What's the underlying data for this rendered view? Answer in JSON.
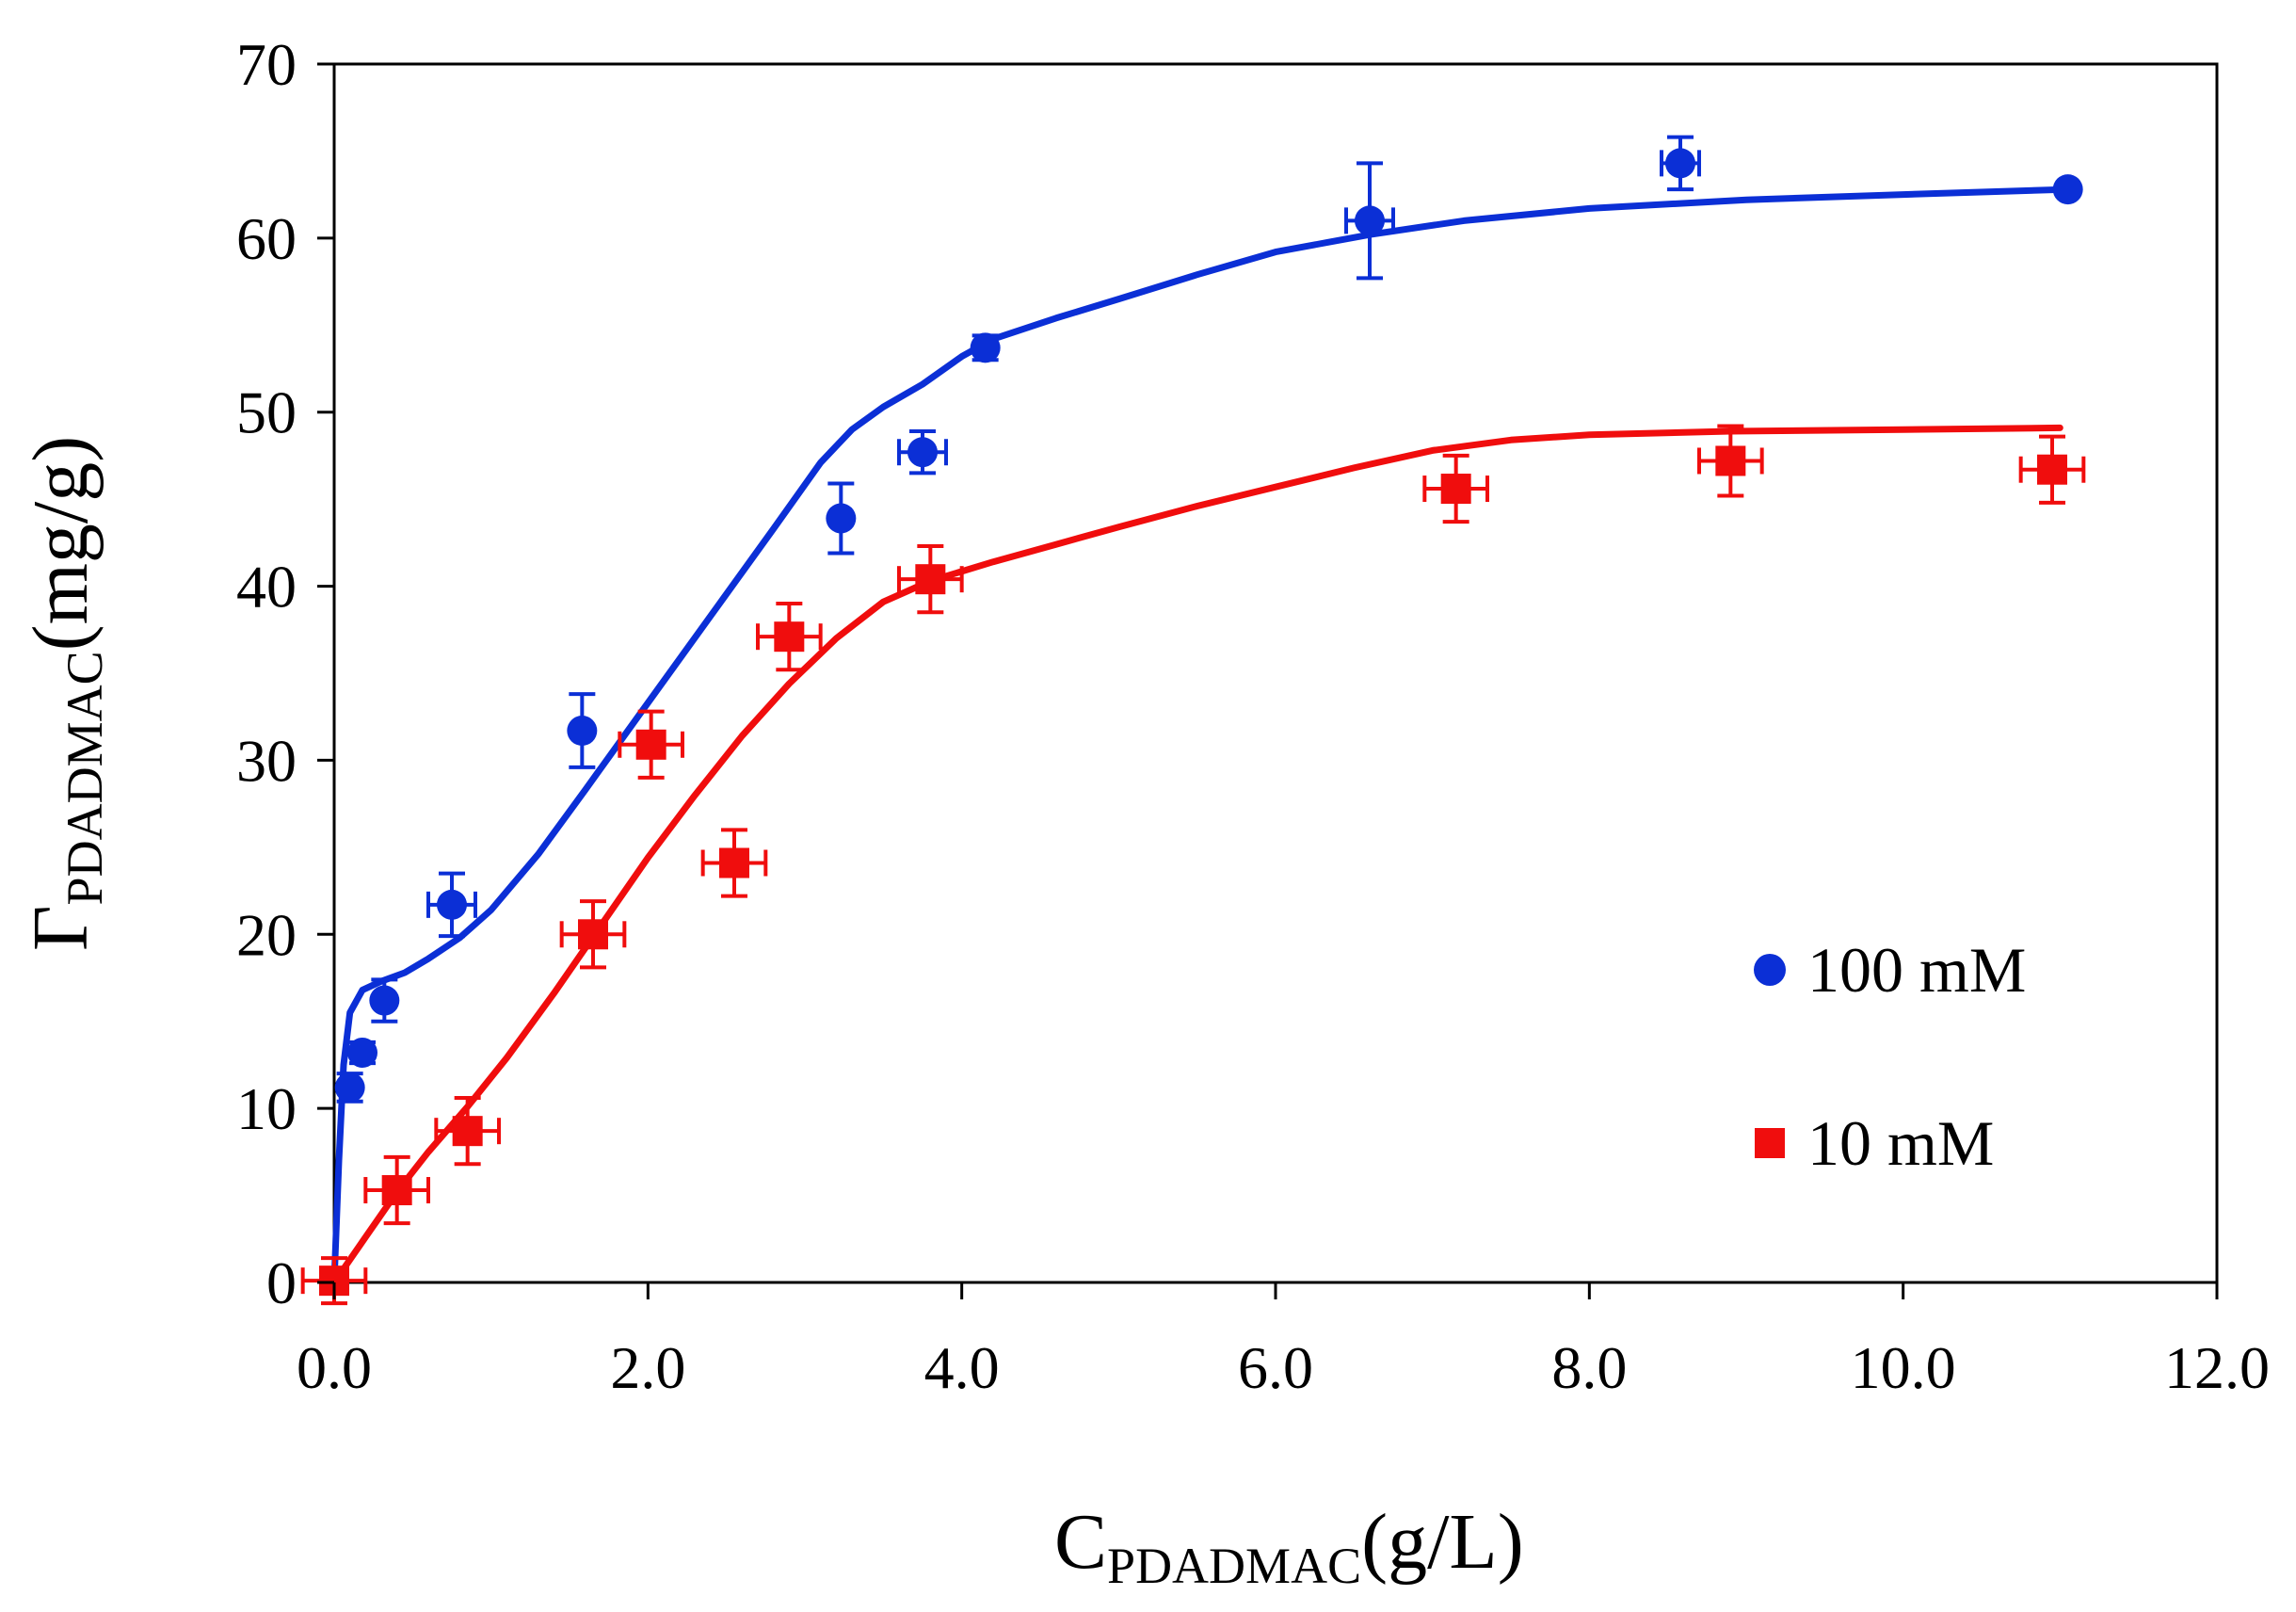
{
  "chart_data": {
    "type": "scatter",
    "xlabel": {
      "main": "C",
      "sub": "PDADMAC",
      "unit": "(g/L)"
    },
    "ylabel": {
      "main": "Γ",
      "sub": "PDADMAC",
      "unit": "(mg/g)"
    },
    "xlim": [
      0,
      12
    ],
    "ylim": [
      0,
      70
    ],
    "x_ticks": [
      0,
      2,
      4,
      6,
      8,
      10,
      12
    ],
    "x_tick_labels": [
      "0.0",
      "2.0",
      "4.0",
      "6.0",
      "8.0",
      "10.0",
      "12.0"
    ],
    "y_ticks": [
      0,
      10,
      20,
      30,
      40,
      50,
      60,
      70
    ],
    "y_tick_labels": [
      "0",
      "10",
      "20",
      "30",
      "40",
      "50",
      "60",
      "70"
    ],
    "grid": false,
    "legend_position": "lower-right",
    "series": [
      {
        "name": "100 mM",
        "marker": "circle",
        "color": "#0b2fd6",
        "points": [
          {
            "x": 0.1,
            "y": 11.2,
            "yerr": 0.8,
            "xerr": 0
          },
          {
            "x": 0.18,
            "y": 13.2,
            "yerr": 0.6,
            "xerr": 0
          },
          {
            "x": 0.32,
            "y": 16.2,
            "yerr": 1.2,
            "xerr": 0
          },
          {
            "x": 0.75,
            "y": 21.7,
            "yerr": 1.8,
            "xerr": 0.15
          },
          {
            "x": 1.58,
            "y": 31.7,
            "yerr": 2.1,
            "xerr": 0
          },
          {
            "x": 3.23,
            "y": 43.9,
            "yerr": 2.0,
            "xerr": 0
          },
          {
            "x": 3.75,
            "y": 47.7,
            "yerr": 1.2,
            "xerr": 0.15
          },
          {
            "x": 4.15,
            "y": 53.7,
            "yerr": 0.7,
            "xerr": 0
          },
          {
            "x": 6.6,
            "y": 61.0,
            "yerr": 3.3,
            "xerr": 0.15
          },
          {
            "x": 8.58,
            "y": 64.3,
            "yerr": 1.5,
            "xerr": 0.12
          },
          {
            "x": 11.05,
            "y": 62.8,
            "yerr": 0,
            "xerr": 0
          }
        ],
        "fit": [
          [
            0,
            0
          ],
          [
            0.03,
            7
          ],
          [
            0.06,
            12.5
          ],
          [
            0.1,
            15.5
          ],
          [
            0.18,
            16.8
          ],
          [
            0.3,
            17.3
          ],
          [
            0.45,
            17.8
          ],
          [
            0.6,
            18.6
          ],
          [
            0.8,
            19.8
          ],
          [
            1.0,
            21.4
          ],
          [
            1.3,
            24.6
          ],
          [
            1.6,
            28.3
          ],
          [
            2.0,
            33.3
          ],
          [
            2.4,
            38.3
          ],
          [
            2.8,
            43.3
          ],
          [
            3.1,
            47.1
          ],
          [
            3.3,
            49.0
          ],
          [
            3.5,
            50.3
          ],
          [
            3.75,
            51.6
          ],
          [
            4.0,
            53.2
          ],
          [
            4.2,
            54.2
          ],
          [
            4.6,
            55.4
          ],
          [
            5.0,
            56.5
          ],
          [
            5.5,
            57.9
          ],
          [
            6.0,
            59.2
          ],
          [
            6.6,
            60.2
          ],
          [
            7.2,
            61.0
          ],
          [
            8.0,
            61.7
          ],
          [
            9.0,
            62.2
          ],
          [
            10.0,
            62.5
          ],
          [
            11.05,
            62.8
          ]
        ]
      },
      {
        "name": "10 mM",
        "marker": "square",
        "color": "#f00d0d",
        "points": [
          {
            "x": 0.0,
            "y": 0.1,
            "yerr": 1.3,
            "xerr": 0.2
          },
          {
            "x": 0.4,
            "y": 5.3,
            "yerr": 1.9,
            "xerr": 0.2
          },
          {
            "x": 0.85,
            "y": 8.7,
            "yerr": 1.9,
            "xerr": 0.2
          },
          {
            "x": 1.65,
            "y": 20.0,
            "yerr": 1.9,
            "xerr": 0.2
          },
          {
            "x": 2.02,
            "y": 30.9,
            "yerr": 1.9,
            "xerr": 0.2
          },
          {
            "x": 2.55,
            "y": 24.1,
            "yerr": 1.9,
            "xerr": 0.2
          },
          {
            "x": 2.9,
            "y": 37.1,
            "yerr": 1.9,
            "xerr": 0.2
          },
          {
            "x": 3.8,
            "y": 40.4,
            "yerr": 1.9,
            "xerr": 0.2
          },
          {
            "x": 7.15,
            "y": 45.6,
            "yerr": 1.9,
            "xerr": 0.2
          },
          {
            "x": 8.9,
            "y": 47.2,
            "yerr": 2.0,
            "xerr": 0.2
          },
          {
            "x": 10.95,
            "y": 46.7,
            "yerr": 1.9,
            "xerr": 0.2
          }
        ],
        "fit": [
          [
            0,
            0
          ],
          [
            0.2,
            2.6
          ],
          [
            0.4,
            5.2
          ],
          [
            0.6,
            7.5
          ],
          [
            0.85,
            10.1
          ],
          [
            1.1,
            12.9
          ],
          [
            1.4,
            16.6
          ],
          [
            1.7,
            20.5
          ],
          [
            2.0,
            24.4
          ],
          [
            2.3,
            28.0
          ],
          [
            2.6,
            31.4
          ],
          [
            2.9,
            34.4
          ],
          [
            3.2,
            37.0
          ],
          [
            3.5,
            39.1
          ],
          [
            3.8,
            40.3
          ],
          [
            4.2,
            41.4
          ],
          [
            4.6,
            42.4
          ],
          [
            5.0,
            43.4
          ],
          [
            5.5,
            44.6
          ],
          [
            6.0,
            45.7
          ],
          [
            6.5,
            46.8
          ],
          [
            7.0,
            47.8
          ],
          [
            7.5,
            48.4
          ],
          [
            8.0,
            48.7
          ],
          [
            8.9,
            48.9
          ],
          [
            10.0,
            49.0
          ],
          [
            11.0,
            49.1
          ]
        ]
      }
    ]
  }
}
